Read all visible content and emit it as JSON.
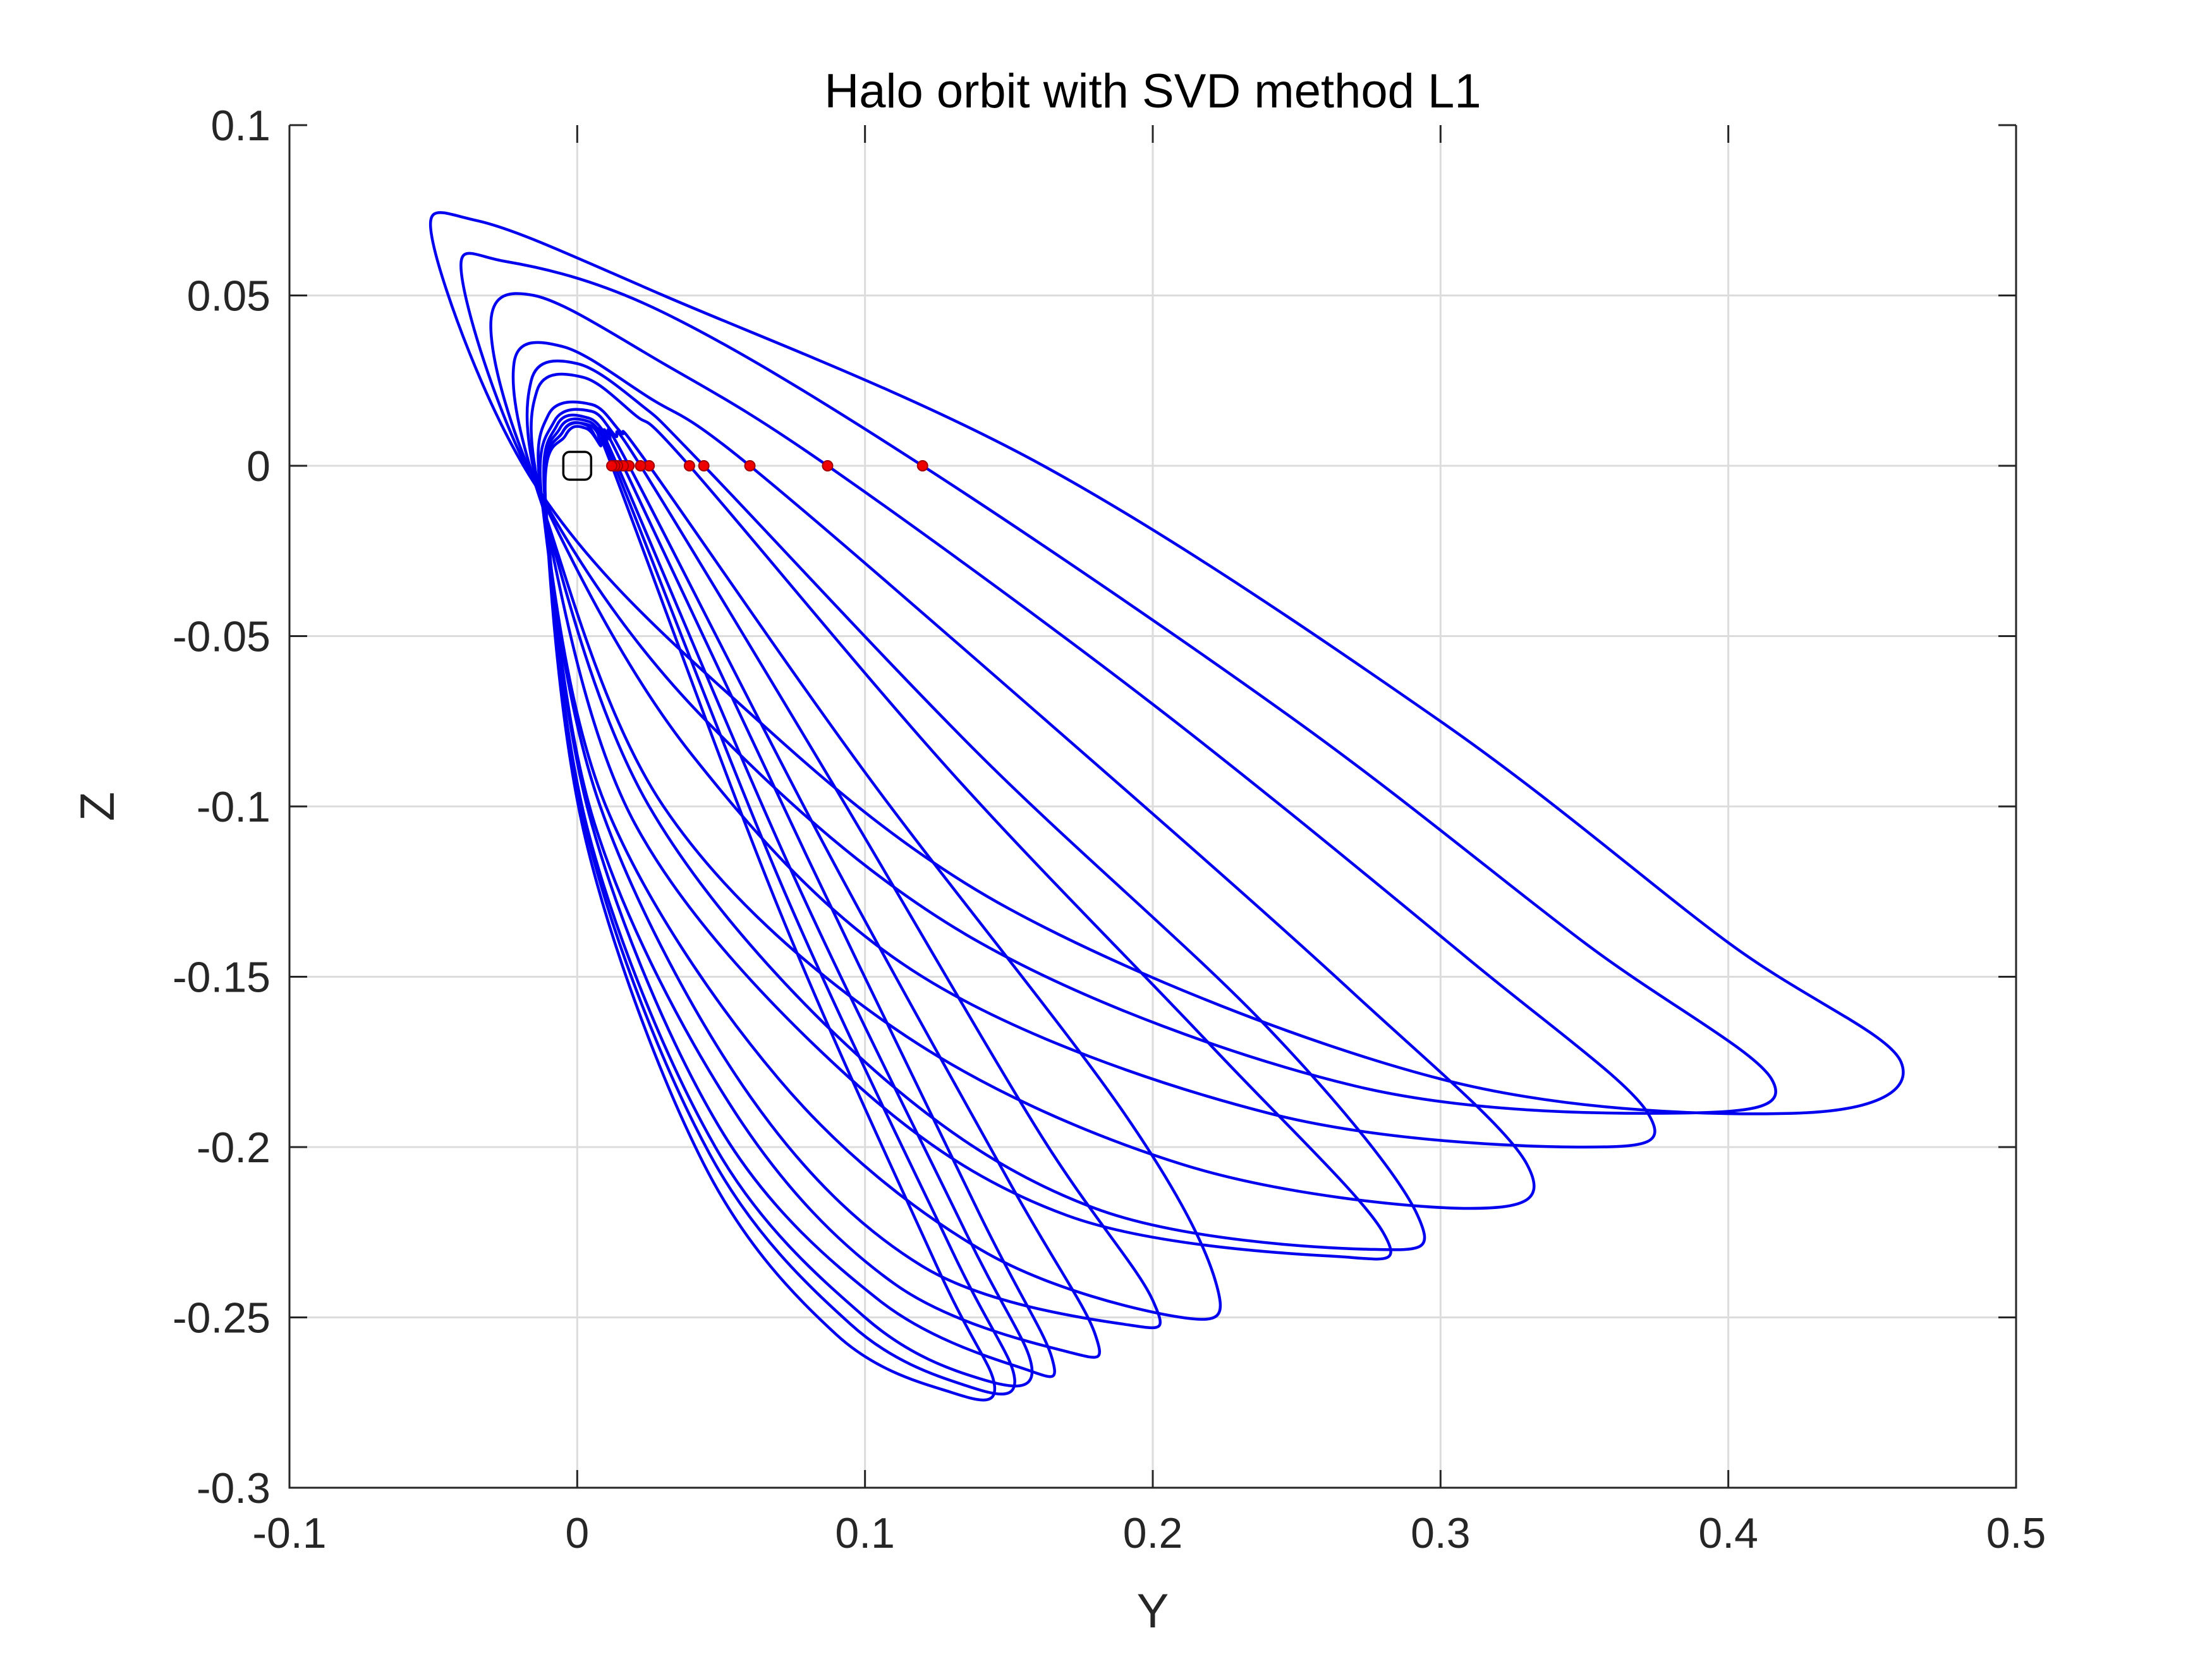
{
  "chart_data": {
    "type": "line",
    "title": "Halo orbit with SVD method L1",
    "xlabel": "Y",
    "ylabel": "Z",
    "xlim": [
      -0.1,
      0.5
    ],
    "ylim": [
      -0.3,
      0.1
    ],
    "xticks": [
      -0.1,
      0,
      0.1,
      0.2,
      0.3,
      0.4,
      0.5
    ],
    "yticks": [
      -0.3,
      -0.25,
      -0.2,
      -0.15,
      -0.1,
      -0.05,
      0,
      0.05,
      0.1
    ],
    "xtick_labels": [
      "-0.1",
      "0",
      "0.1",
      "0.2",
      "0.3",
      "0.4",
      "0.5"
    ],
    "ytick_labels": [
      "-0.3",
      "-0.25",
      "-0.2",
      "-0.15",
      "-0.1",
      "-0.05",
      "0",
      "0.05",
      "0.1"
    ],
    "grid": true,
    "orbit_color": "#0000ee",
    "point_color": "#ee0000",
    "libration_point": [
      0,
      0
    ],
    "series": [
      {
        "x": [
          0.162,
          0.3,
          0.4,
          0.46,
          0.425,
          0.3,
          0.15,
          0.05,
          -0.015,
          -0.05,
          -0.035,
          0.03,
          0.162
        ],
        "y": [
          0,
          -0.075,
          -0.14,
          -0.175,
          -0.19,
          -0.18,
          -0.13,
          -0.065,
          -0.005,
          0.065,
          0.072,
          0.05,
          0
        ]
      },
      {
        "x": [
          0.12,
          0.25,
          0.35,
          0.415,
          0.385,
          0.27,
          0.14,
          0.045,
          -0.013,
          -0.04,
          -0.025,
          0.03,
          0.12
        ],
        "y": [
          0,
          -0.075,
          -0.14,
          -0.18,
          -0.19,
          -0.182,
          -0.14,
          -0.075,
          -0.008,
          0.055,
          0.06,
          0.045,
          0
        ],
        "crossings": [
          0.12
        ]
      },
      {
        "x": [
          0.087,
          0.2,
          0.31,
          0.372,
          0.35,
          0.24,
          0.12,
          0.04,
          -0.012,
          -0.03,
          -0.015,
          0.03,
          0.087
        ],
        "y": [
          0,
          -0.07,
          -0.145,
          -0.19,
          -0.2,
          -0.19,
          -0.15,
          -0.085,
          -0.01,
          0.04,
          0.05,
          0.03,
          0
        ],
        "crossings": [
          0.087
        ]
      },
      {
        "x": [
          0.06,
          0.17,
          0.27,
          0.33,
          0.31,
          0.21,
          0.11,
          0.03,
          -0.012,
          -0.022,
          -0.005,
          0.025,
          0.06
        ],
        "y": [
          0,
          -0.08,
          -0.155,
          -0.205,
          -0.218,
          -0.205,
          -0.165,
          -0.1,
          -0.012,
          0.03,
          0.035,
          0.02,
          0
        ],
        "crossings": [
          0.06
        ]
      },
      {
        "x": [
          0.044,
          0.14,
          0.24,
          0.292,
          0.275,
          0.18,
          0.1,
          0.025,
          -0.012,
          -0.016,
          0.0,
          0.022,
          0.044
        ],
        "y": [
          0,
          -0.085,
          -0.165,
          -0.22,
          -0.23,
          -0.218,
          -0.175,
          -0.1,
          -0.012,
          0.025,
          0.03,
          0.018,
          0
        ],
        "crossings": [
          0.044
        ]
      },
      {
        "x": [
          0.039,
          0.13,
          0.22,
          0.28,
          0.262,
          0.17,
          0.095,
          0.02,
          -0.012,
          -0.014,
          0.002,
          0.02,
          0.039
        ],
        "y": [
          0,
          -0.09,
          -0.17,
          -0.225,
          -0.232,
          -0.22,
          -0.18,
          -0.105,
          -0.012,
          0.022,
          0.026,
          0.015,
          0
        ],
        "crossings": [
          0.039
        ]
      },
      {
        "x": [
          0.025,
          0.1,
          0.19,
          0.222,
          0.21,
          0.14,
          0.07,
          0.01,
          -0.012,
          -0.01,
          0.005,
          0.015,
          0.025
        ],
        "y": [
          0,
          -0.09,
          -0.19,
          -0.24,
          -0.25,
          -0.23,
          -0.18,
          -0.1,
          -0.012,
          0.015,
          0.018,
          0.01,
          0
        ],
        "crossings": [
          0.025
        ]
      },
      {
        "x": [
          0.022,
          0.09,
          0.16,
          0.2,
          0.19,
          0.12,
          0.06,
          0.008,
          -0.012,
          -0.008,
          0.005,
          0.013,
          0.022
        ],
        "y": [
          0,
          -0.095,
          -0.195,
          -0.245,
          -0.252,
          -0.235,
          -0.185,
          -0.1,
          -0.012,
          0.013,
          0.016,
          0.009,
          0
        ],
        "crossings": [
          0.022
        ]
      },
      {
        "x": [
          0.018,
          0.085,
          0.15,
          0.18,
          0.17,
          0.11,
          0.055,
          0.006,
          -0.011,
          -0.007,
          0.004,
          0.011,
          0.018
        ],
        "y": [
          0,
          -0.11,
          -0.21,
          -0.255,
          -0.26,
          -0.24,
          -0.19,
          -0.105,
          -0.012,
          0.012,
          0.014,
          0.008,
          0
        ],
        "crossings": [
          0.018
        ]
      },
      {
        "x": [
          0.016,
          0.08,
          0.14,
          0.165,
          0.155,
          0.105,
          0.05,
          0.005,
          -0.011,
          -0.006,
          0.004,
          0.01,
          0.016
        ],
        "y": [
          0,
          -0.115,
          -0.22,
          -0.262,
          -0.265,
          -0.245,
          -0.195,
          -0.105,
          -0.011,
          0.011,
          0.013,
          0.007,
          0
        ],
        "crossings": [
          0.016
        ]
      },
      {
        "x": [
          0.014,
          0.075,
          0.135,
          0.158,
          0.14,
          0.1,
          0.048,
          0.004,
          -0.011,
          -0.005,
          0.004,
          0.009,
          0.014
        ],
        "y": [
          0,
          -0.12,
          -0.225,
          -0.265,
          -0.268,
          -0.25,
          -0.2,
          -0.108,
          -0.011,
          0.01,
          0.012,
          0.007,
          0
        ],
        "crossings": [
          0.014
        ]
      },
      {
        "x": [
          0.013,
          0.072,
          0.13,
          0.152,
          0.135,
          0.095,
          0.046,
          0.004,
          -0.011,
          -0.005,
          0.003,
          0.008,
          0.013
        ],
        "y": [
          0,
          -0.125,
          -0.23,
          -0.268,
          -0.27,
          -0.252,
          -0.202,
          -0.11,
          -0.011,
          0.01,
          0.012,
          0.006,
          0
        ],
        "crossings": [
          0.013
        ]
      },
      {
        "x": [
          0.012,
          0.07,
          0.125,
          0.145,
          0.13,
          0.09,
          0.044,
          0.003,
          -0.011,
          -0.004,
          0.003,
          0.008,
          0.012
        ],
        "y": [
          0,
          -0.13,
          -0.235,
          -0.27,
          -0.272,
          -0.255,
          -0.205,
          -0.11,
          -0.011,
          0.009,
          0.011,
          0.006,
          0
        ],
        "crossings": [
          0.012
        ]
      }
    ]
  }
}
